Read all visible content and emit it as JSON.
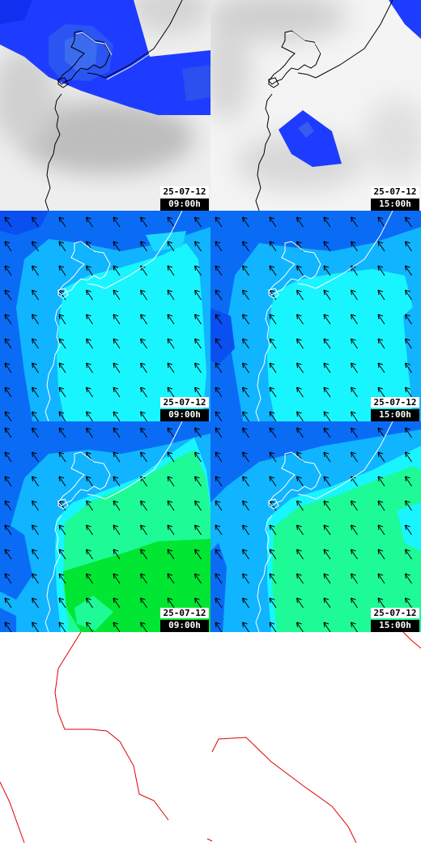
{
  "panels": [
    {
      "date": "25-07-12",
      "time": "09:00h",
      "field": "cloud"
    },
    {
      "date": "25-07-12",
      "time": "15:00h",
      "field": "cloud"
    },
    {
      "date": "25-07-12",
      "time": "09:00h",
      "field": "wind"
    },
    {
      "date": "25-07-12",
      "time": "15:00h",
      "field": "wind"
    },
    {
      "date": "25-07-12",
      "time": "09:00h",
      "field": "gust"
    },
    {
      "date": "25-07-12",
      "time": "15:00h",
      "field": "gust"
    }
  ],
  "colors": {
    "cloud_light": "#f2f2f2",
    "cloud_grey": "#c8c8c8",
    "cloud_blue": "#1e3cff",
    "cloud_blue_dark": "#0a14f0",
    "wind_dark": "#0a6cf5",
    "wind_mid": "#10b4ff",
    "wind_light": "#19f5ff",
    "gust_green": "#1efa96",
    "gust_brightgreen": "#00e632",
    "coastline": "#ffffff",
    "coastline_dark": "#000000",
    "route": "#e00000",
    "arrow": "#000000"
  },
  "arrow_icon": "wind-direction-arrow-icon"
}
